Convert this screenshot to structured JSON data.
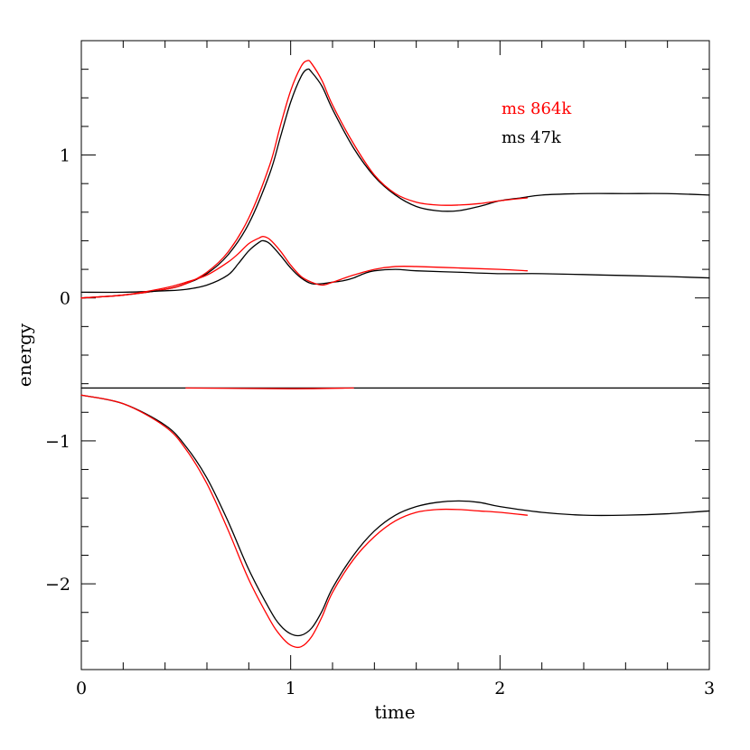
{
  "chart_data": {
    "type": "line",
    "title": "",
    "xlabel": "time",
    "ylabel": "energy",
    "xlim": [
      0,
      3
    ],
    "ylim": [
      -2.6,
      1.8
    ],
    "x_ticks": [
      0,
      1,
      2,
      3
    ],
    "x_tick_labels": [
      "0",
      "1",
      "2",
      "3"
    ],
    "y_ticks": [
      -2,
      -1,
      0,
      1
    ],
    "y_tick_labels": [
      "−2",
      "−1",
      "0",
      "1"
    ],
    "x_minor_step": 0.2,
    "y_minor_step": 0.2,
    "grid": false,
    "legend": {
      "placement": "top-right",
      "entries": [
        {
          "label": "ms 864k",
          "color": "#ff0000"
        },
        {
          "label": "ms 47k",
          "color": "#000000"
        }
      ]
    },
    "series": [
      {
        "name": "ms 47k",
        "color": "#000000",
        "x": [
          0,
          0.2,
          0.4,
          0.5,
          0.6,
          0.7,
          0.8,
          0.9,
          0.95,
          1.0,
          1.05,
          1.08,
          1.1,
          1.15,
          1.2,
          1.3,
          1.4,
          1.5,
          1.6,
          1.7,
          1.8,
          1.9,
          2.0,
          2.1,
          2.2,
          2.4,
          2.6,
          2.8,
          3.0
        ],
        "y": [
          0.0,
          0.02,
          0.06,
          0.1,
          0.17,
          0.3,
          0.52,
          0.87,
          1.12,
          1.37,
          1.55,
          1.6,
          1.58,
          1.48,
          1.32,
          1.05,
          0.85,
          0.72,
          0.64,
          0.61,
          0.61,
          0.64,
          0.68,
          0.7,
          0.72,
          0.73,
          0.73,
          0.73,
          0.72
        ]
      },
      {
        "name": "ms 864k",
        "color": "#ff0000",
        "x": [
          0,
          0.2,
          0.4,
          0.5,
          0.6,
          0.7,
          0.8,
          0.9,
          0.95,
          1.0,
          1.05,
          1.08,
          1.1,
          1.15,
          1.2,
          1.3,
          1.4,
          1.5,
          1.6,
          1.7,
          1.8,
          1.9,
          2.0,
          2.13
        ],
        "y": [
          0.0,
          0.02,
          0.06,
          0.1,
          0.18,
          0.32,
          0.56,
          0.93,
          1.2,
          1.45,
          1.62,
          1.66,
          1.64,
          1.52,
          1.35,
          1.08,
          0.86,
          0.73,
          0.67,
          0.65,
          0.65,
          0.66,
          0.68,
          0.7
        ]
      },
      {
        "name": "ms 47k",
        "color": "#000000",
        "x": [
          0,
          0.2,
          0.4,
          0.5,
          0.6,
          0.7,
          0.75,
          0.8,
          0.85,
          0.87,
          0.9,
          0.95,
          1.0,
          1.05,
          1.1,
          1.15,
          1.2,
          1.25,
          1.3,
          1.35,
          1.4,
          1.5,
          1.6,
          1.8,
          2.0,
          2.2,
          2.5,
          2.8,
          3.0
        ],
        "y": [
          0.04,
          0.04,
          0.05,
          0.06,
          0.09,
          0.16,
          0.24,
          0.33,
          0.39,
          0.4,
          0.38,
          0.3,
          0.21,
          0.14,
          0.1,
          0.1,
          0.11,
          0.12,
          0.14,
          0.17,
          0.19,
          0.2,
          0.19,
          0.18,
          0.17,
          0.17,
          0.16,
          0.15,
          0.14
        ]
      },
      {
        "name": "ms 864k",
        "color": "#ff0000",
        "x": [
          0,
          0.2,
          0.4,
          0.5,
          0.6,
          0.7,
          0.75,
          0.8,
          0.85,
          0.87,
          0.9,
          0.95,
          1.0,
          1.05,
          1.1,
          1.15,
          1.2,
          1.3,
          1.4,
          1.5,
          1.6,
          1.8,
          2.0,
          2.13
        ],
        "y": [
          0.0,
          0.02,
          0.07,
          0.11,
          0.16,
          0.25,
          0.31,
          0.38,
          0.42,
          0.43,
          0.41,
          0.33,
          0.23,
          0.15,
          0.11,
          0.09,
          0.11,
          0.16,
          0.2,
          0.22,
          0.22,
          0.21,
          0.2,
          0.19
        ]
      },
      {
        "name": "ms 47k",
        "color": "#000000",
        "x": [
          0,
          3
        ],
        "y": [
          -0.63,
          -0.63
        ]
      },
      {
        "name": "ms 864k",
        "color": "#ff0000",
        "x": [
          0.5,
          1.0,
          1.3
        ],
        "y": [
          -0.63,
          -0.635,
          -0.63
        ]
      },
      {
        "name": "ms 47k",
        "color": "#000000",
        "x": [
          0,
          0.2,
          0.4,
          0.5,
          0.6,
          0.7,
          0.8,
          0.9,
          0.95,
          1.0,
          1.05,
          1.1,
          1.15,
          1.2,
          1.3,
          1.4,
          1.5,
          1.6,
          1.7,
          1.8,
          1.9,
          2.0,
          2.2,
          2.4,
          2.6,
          2.8,
          3.0
        ],
        "y": [
          -0.68,
          -0.74,
          -0.89,
          -1.04,
          -1.26,
          -1.56,
          -1.9,
          -2.18,
          -2.29,
          -2.35,
          -2.36,
          -2.31,
          -2.19,
          -2.03,
          -1.8,
          -1.63,
          -1.52,
          -1.46,
          -1.43,
          -1.42,
          -1.43,
          -1.46,
          -1.5,
          -1.52,
          -1.52,
          -1.51,
          -1.49
        ]
      },
      {
        "name": "ms 864k",
        "color": "#ff0000",
        "x": [
          0,
          0.2,
          0.4,
          0.5,
          0.6,
          0.7,
          0.8,
          0.9,
          0.95,
          1.0,
          1.05,
          1.1,
          1.15,
          1.2,
          1.3,
          1.4,
          1.5,
          1.6,
          1.7,
          1.8,
          1.9,
          2.0,
          2.13
        ],
        "y": [
          -0.68,
          -0.74,
          -0.9,
          -1.06,
          -1.3,
          -1.62,
          -1.97,
          -2.25,
          -2.36,
          -2.43,
          -2.44,
          -2.37,
          -2.23,
          -2.06,
          -1.83,
          -1.67,
          -1.56,
          -1.5,
          -1.48,
          -1.48,
          -1.49,
          -1.5,
          -1.52
        ]
      }
    ]
  }
}
